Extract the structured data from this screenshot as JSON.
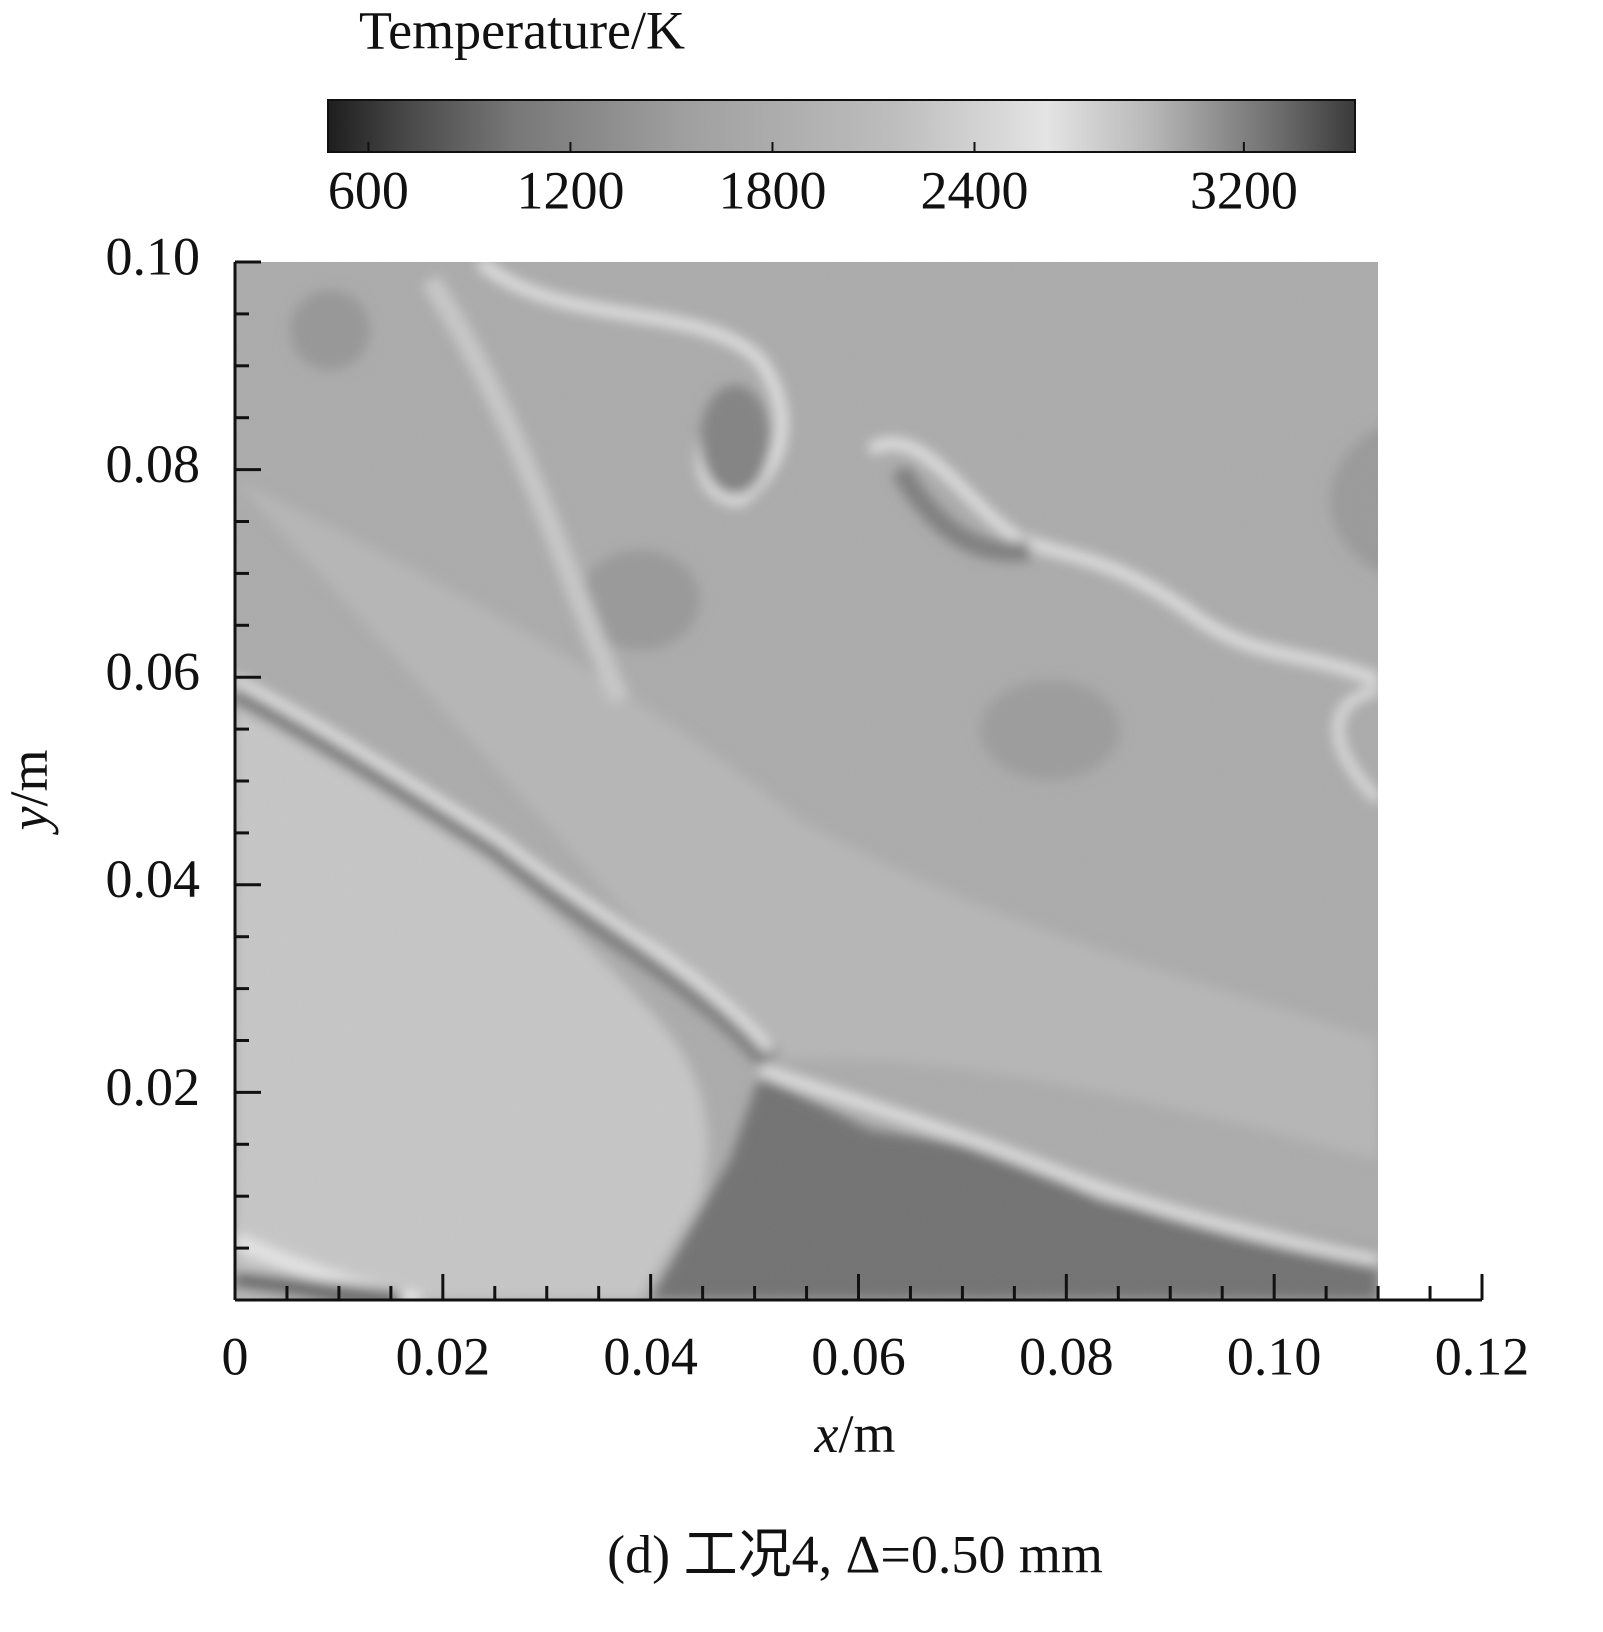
{
  "chart_data": {
    "type": "contour",
    "colorbar": {
      "title": "Temperature/K",
      "clim": [
        480,
        3530
      ],
      "ticks": [
        600,
        1200,
        1800,
        2400,
        3200
      ]
    },
    "xlabel": {
      "symbol": "x",
      "unit": "/m"
    },
    "ylabel": {
      "symbol": "y",
      "unit": "/m"
    },
    "xlim": [
      0,
      0.12
    ],
    "ylim": [
      0,
      0.1
    ],
    "xticks": [
      0,
      0.02,
      0.04,
      0.06,
      0.08,
      {
        "value": 0.1,
        "label": "0.10"
      },
      0.12
    ],
    "yticks": [
      0.02,
      0.04,
      0.06,
      0.08,
      {
        "value": 0.1,
        "label": "0.10"
      }
    ],
    "caption": "(d) 工况4, Δ=0.50 mm"
  }
}
